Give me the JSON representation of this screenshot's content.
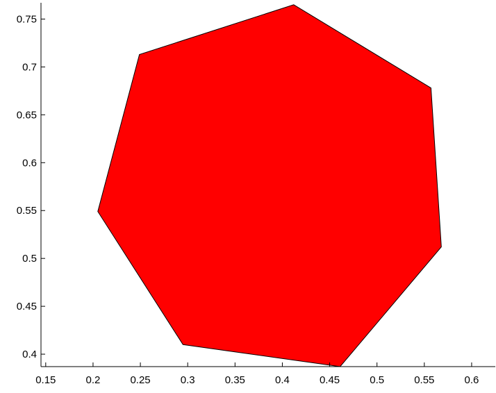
{
  "chart_data": {
    "type": "area",
    "title": "",
    "xlabel": "",
    "ylabel": "",
    "xlim": [
      0.145,
      0.625
    ],
    "ylim": [
      0.387,
      0.767
    ],
    "grid": false,
    "legend": "none",
    "fill_color": "#ff0000",
    "edge_color": "#000000",
    "x_ticks": [
      0.15,
      0.2,
      0.25,
      0.3,
      0.35,
      0.4,
      0.45,
      0.5,
      0.55,
      0.6
    ],
    "x_tick_labels": [
      "0.15",
      "0.2",
      "0.25",
      "0.3",
      "0.35",
      "0.4",
      "0.45",
      "0.5",
      "0.55",
      "0.6"
    ],
    "y_ticks": [
      0.4,
      0.45,
      0.5,
      0.55,
      0.6,
      0.65,
      0.7,
      0.75
    ],
    "y_tick_labels": [
      "0.4",
      "0.45",
      "0.5",
      "0.55",
      "0.6",
      "0.65",
      "0.7",
      "0.75"
    ],
    "series": [
      {
        "points": [
          {
            "x": 0.412,
            "y": 0.765
          },
          {
            "x": 0.557,
            "y": 0.678
          },
          {
            "x": 0.568,
            "y": 0.512
          },
          {
            "x": 0.461,
            "y": 0.387
          },
          {
            "x": 0.295,
            "y": 0.41
          },
          {
            "x": 0.205,
            "y": 0.549
          },
          {
            "x": 0.249,
            "y": 0.713
          }
        ]
      }
    ]
  }
}
